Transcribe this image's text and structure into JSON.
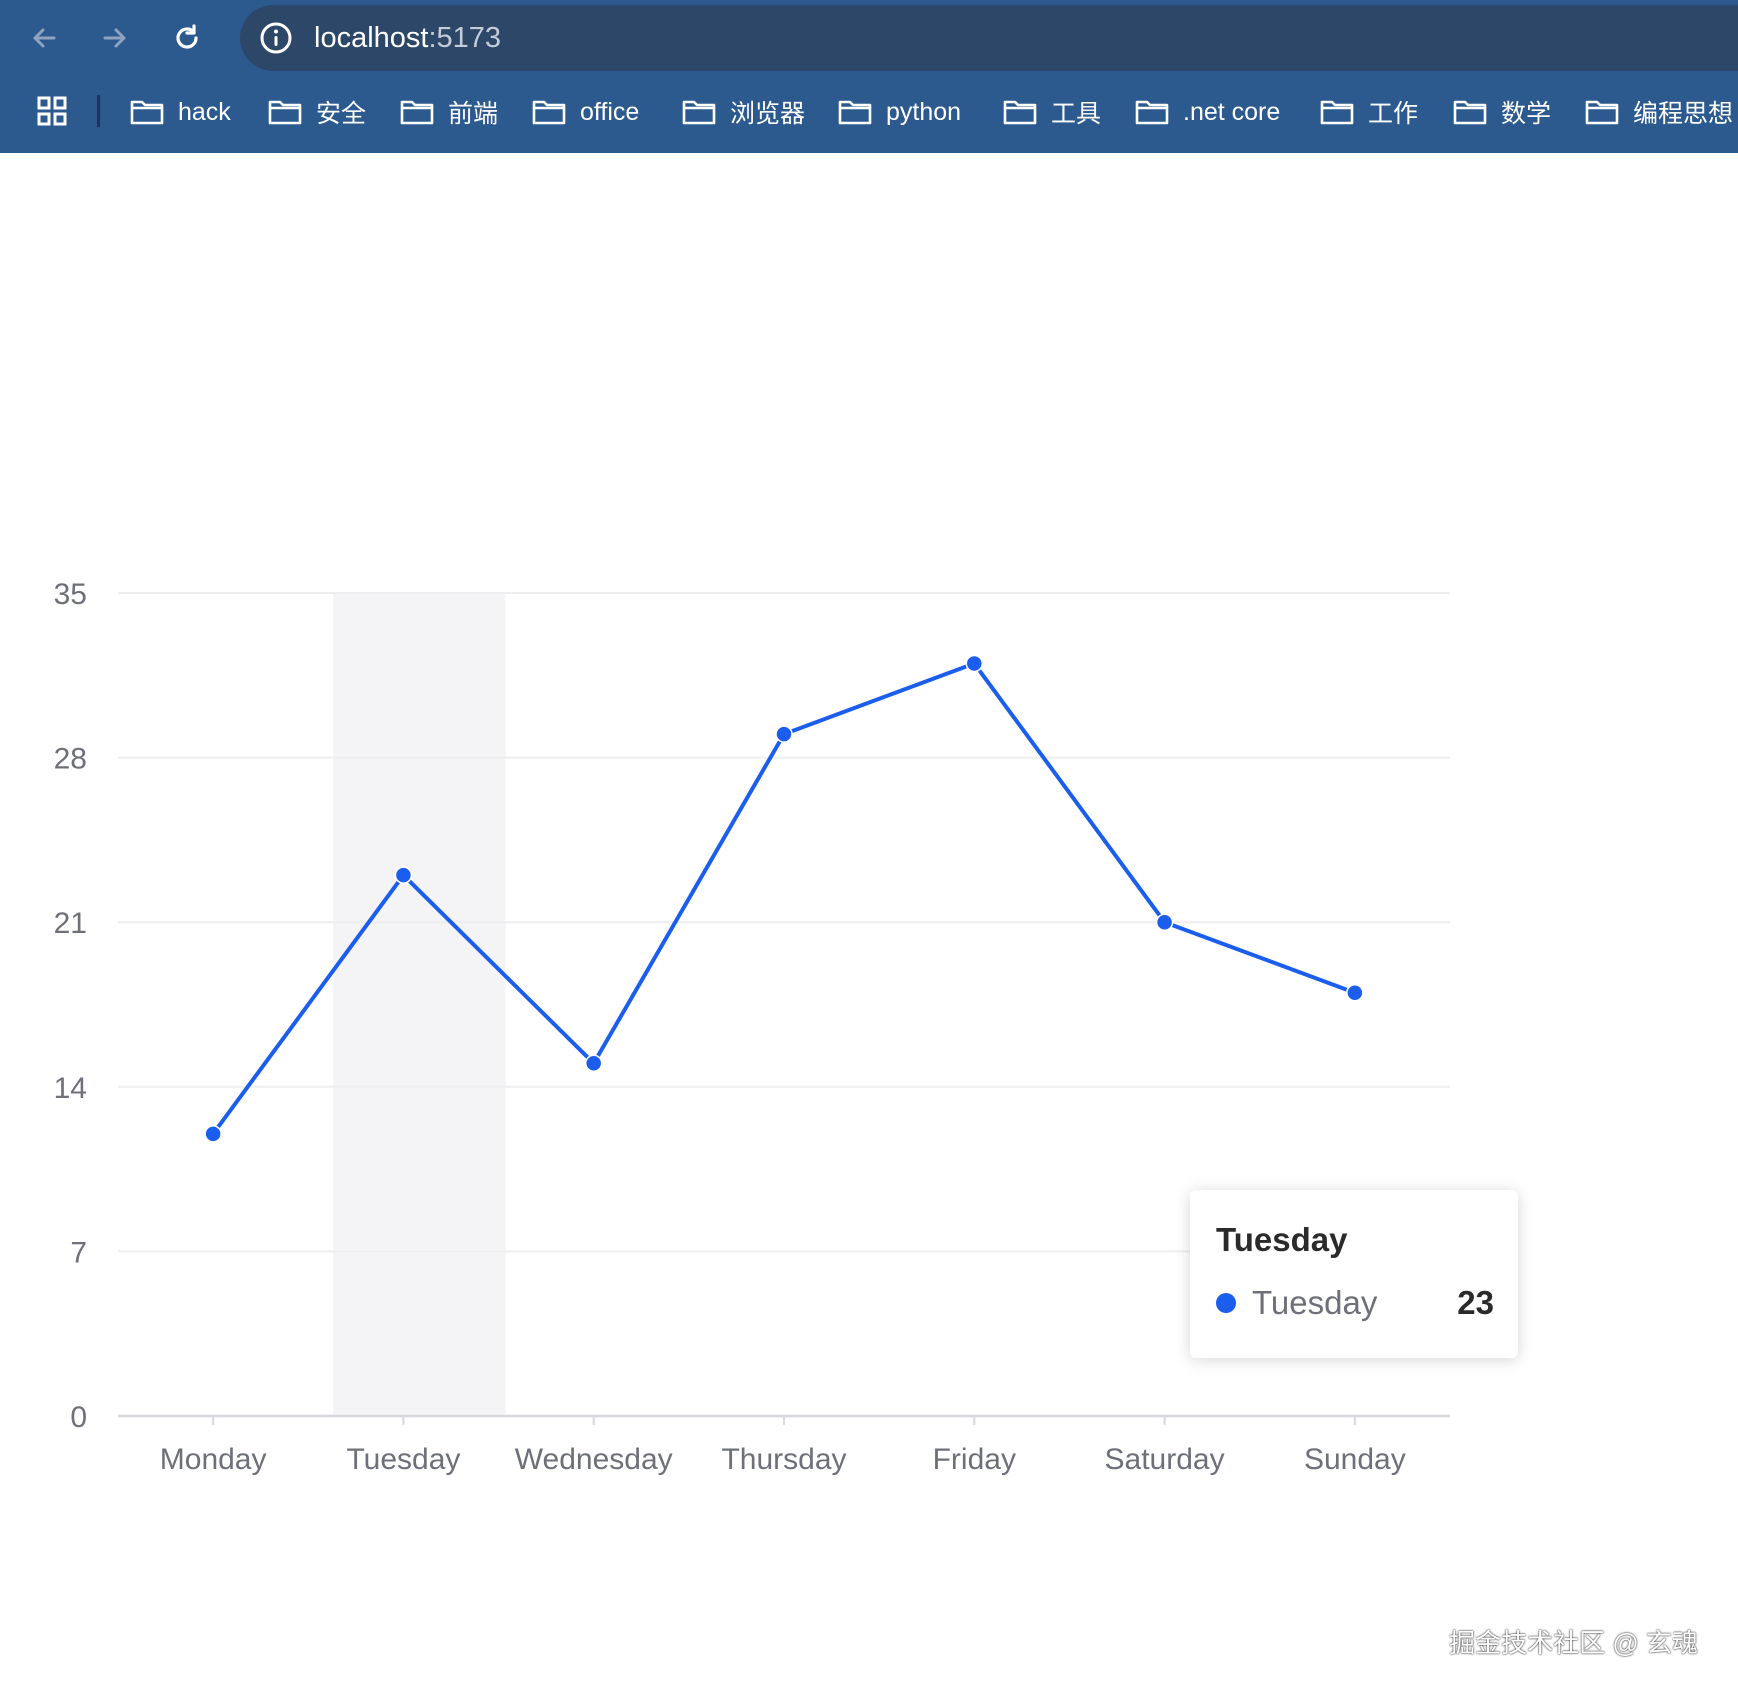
{
  "browser": {
    "url_host": "localhost",
    "url_port": ":5173",
    "bookmarks": [
      {
        "label": "hack"
      },
      {
        "label": "安全"
      },
      {
        "label": "前端"
      },
      {
        "label": "office"
      },
      {
        "label": "浏览器"
      },
      {
        "label": "python"
      },
      {
        "label": "工具"
      },
      {
        "label": ".net core"
      },
      {
        "label": "工作"
      },
      {
        "label": "数学"
      },
      {
        "label": "编程思想"
      }
    ]
  },
  "chart_data": {
    "type": "line",
    "categories": [
      "Monday",
      "Tuesday",
      "Wednesday",
      "Thursday",
      "Friday",
      "Saturday",
      "Sunday"
    ],
    "series": [
      {
        "values": [
          12,
          23,
          15,
          29,
          32,
          21,
          18
        ]
      }
    ],
    "yticks": [
      0,
      7,
      14,
      21,
      28,
      35
    ],
    "ylim": [
      0,
      35
    ],
    "grid": true,
    "highlighted_category": "Tuesday",
    "colors": {
      "line": "#1b5eed",
      "axis_label": "#6e7079",
      "grid": "#eeeeee",
      "highlight": "#f4f4f6"
    }
  },
  "tooltip": {
    "title": "Tuesday",
    "series_name": "Tuesday",
    "value": "23"
  },
  "watermark": "掘金技术社区 @ 玄魂"
}
